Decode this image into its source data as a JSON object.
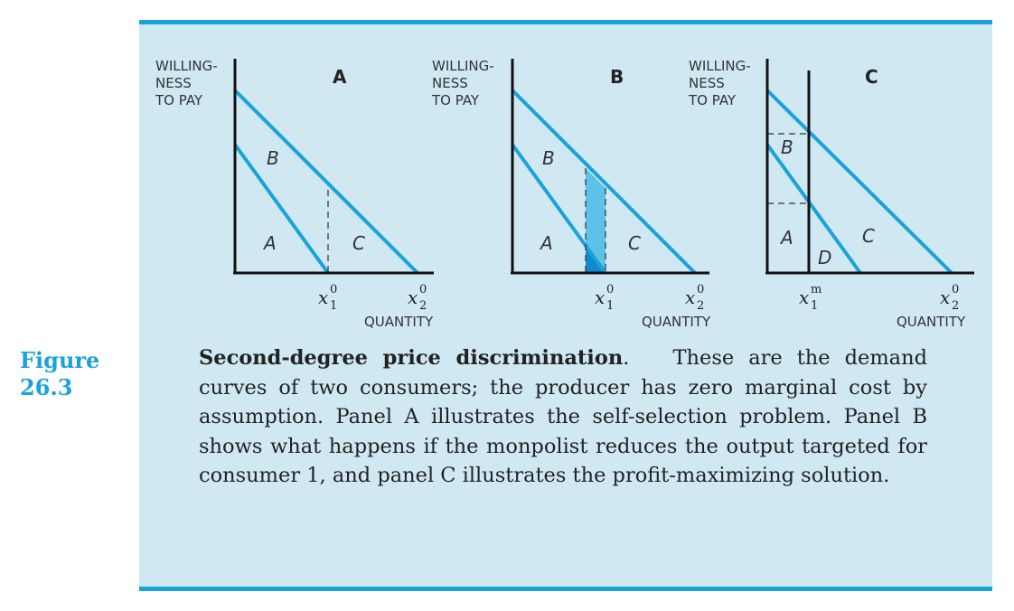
{
  "panels": [
    {
      "id": "A",
      "title": "A",
      "ylabel_lines": [
        "WILLING-",
        "NESS",
        "TO PAY"
      ],
      "xlabel": "QUANTITY",
      "regions": [
        "B",
        "A",
        "C"
      ],
      "ticks": [
        {
          "base": "x",
          "sup": "0",
          "sub": "1"
        },
        {
          "base": "x",
          "sup": "0",
          "sub": "2"
        }
      ]
    },
    {
      "id": "B",
      "title": "B",
      "ylabel_lines": [
        "WILLING-",
        "NESS",
        "TO PAY"
      ],
      "xlabel": "QUANTITY",
      "regions": [
        "B",
        "A",
        "C"
      ],
      "ticks": [
        {
          "base": "x",
          "sup": "0",
          "sub": "1"
        },
        {
          "base": "x",
          "sup": "0",
          "sub": "2"
        }
      ]
    },
    {
      "id": "C",
      "title": "C",
      "ylabel_lines": [
        "WILLING-",
        "NESS",
        "TO PAY"
      ],
      "xlabel": "QUANTITY",
      "regions": [
        "B",
        "A",
        "C",
        "D"
      ],
      "ticks": [
        {
          "base": "x",
          "sup": "m",
          "sub": "1"
        },
        {
          "base": "x",
          "sup": "0",
          "sub": "2"
        }
      ]
    }
  ],
  "figure": {
    "label_line1": "Figure",
    "label_line2": "26.3"
  },
  "caption": {
    "title": "Second-degree price discrimination",
    "title_end": ".",
    "body": "These are the demand curves of two consumers; the producer has zero marginal cost by assumption. Panel A illustrates the self-selection problem. Panel B shows what happens if the monpolist reduces the output targeted for consumer 1, and panel C illustrates the profit-maximizing solution."
  },
  "colors": {
    "accent": "#1aa3d9",
    "panel_background": "#cfe8f2",
    "axis": "#111111",
    "shade_light": "#5ec1e8",
    "shade_dark": "#0f8ad0"
  }
}
